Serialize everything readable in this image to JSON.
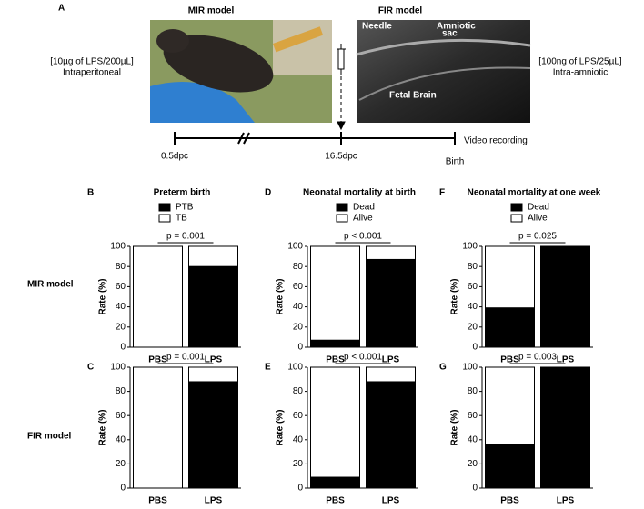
{
  "panel_a": {
    "letter": "A",
    "mir_title": "MIR model",
    "fir_title": "FIR model",
    "mir_dose": "[10µg of LPS/200µL]",
    "mir_route": "Intraperitoneal",
    "fir_dose": "[100ng of LPS/25µL]",
    "fir_route": "Intra-amniotic",
    "image_labels": {
      "needle": "Needle",
      "amniotic_1": "Amniotic",
      "amniotic_2": "sac",
      "fetal_brain": "Fetal Brain"
    },
    "timeline": {
      "start": "0.5dpc",
      "injection": "16.5dpc",
      "birth": "Birth",
      "recording": "Video recording"
    }
  },
  "row_labels": [
    "MIR model",
    "FIR model"
  ],
  "chart_data": [
    {
      "type": "bar",
      "stacked": true,
      "panel": "B",
      "title": "Preterm birth",
      "ylabel": "Rate (%)",
      "annotation": "p = 0.001",
      "categories": [
        "PBS",
        "LPS"
      ],
      "series": [
        {
          "name": "PTB",
          "color": "#000000",
          "values": [
            0,
            80
          ]
        },
        {
          "name": "TB",
          "color": "#ffffff",
          "values": [
            100,
            20
          ]
        }
      ],
      "ylim": [
        0,
        100
      ],
      "yticks": [
        0,
        20,
        40,
        60,
        80,
        100
      ]
    },
    {
      "type": "bar",
      "stacked": true,
      "panel": "D",
      "title": "Neonatal mortality at birth",
      "ylabel": "Rate (%)",
      "annotation": "p < 0.001",
      "categories": [
        "PBS",
        "LPS"
      ],
      "series": [
        {
          "name": "Dead",
          "color": "#000000",
          "values": [
            7,
            87
          ]
        },
        {
          "name": "Alive",
          "color": "#ffffff",
          "values": [
            93,
            13
          ]
        }
      ],
      "ylim": [
        0,
        100
      ],
      "yticks": [
        0,
        20,
        40,
        60,
        80,
        100
      ]
    },
    {
      "type": "bar",
      "stacked": true,
      "panel": "F",
      "title": "Neonatal mortality at one week",
      "ylabel": "Rate (%)",
      "annotation": "p = 0.025",
      "categories": [
        "PBS",
        "LPS"
      ],
      "series": [
        {
          "name": "Dead",
          "color": "#000000",
          "values": [
            39,
            100
          ]
        },
        {
          "name": "Alive",
          "color": "#ffffff",
          "values": [
            61,
            0
          ]
        }
      ],
      "ylim": [
        0,
        100
      ],
      "yticks": [
        0,
        20,
        40,
        60,
        80,
        100
      ]
    },
    {
      "type": "bar",
      "stacked": true,
      "panel": "C",
      "ylabel": "Rate (%)",
      "annotation": "p = 0.001",
      "categories": [
        "PBS",
        "LPS"
      ],
      "series": [
        {
          "color": "#000000",
          "values": [
            0,
            88
          ]
        },
        {
          "color": "#ffffff",
          "values": [
            100,
            12
          ]
        }
      ],
      "ylim": [
        0,
        100
      ],
      "yticks": [
        0,
        20,
        40,
        60,
        80,
        100
      ]
    },
    {
      "type": "bar",
      "stacked": true,
      "panel": "E",
      "ylabel": "Rate (%)",
      "annotation": "p < 0.001",
      "categories": [
        "PBS",
        "LPS"
      ],
      "series": [
        {
          "color": "#000000",
          "values": [
            9,
            88
          ]
        },
        {
          "color": "#ffffff",
          "values": [
            91,
            12
          ]
        }
      ],
      "ylim": [
        0,
        100
      ],
      "yticks": [
        0,
        20,
        40,
        60,
        80,
        100
      ]
    },
    {
      "type": "bar",
      "stacked": true,
      "panel": "G",
      "ylabel": "Rate (%)",
      "annotation": "p = 0.003",
      "categories": [
        "PBS",
        "LPS"
      ],
      "series": [
        {
          "color": "#000000",
          "values": [
            36,
            100
          ]
        },
        {
          "color": "#ffffff",
          "values": [
            64,
            0
          ]
        }
      ],
      "ylim": [
        0,
        100
      ],
      "yticks": [
        0,
        20,
        40,
        60,
        80,
        100
      ]
    }
  ]
}
